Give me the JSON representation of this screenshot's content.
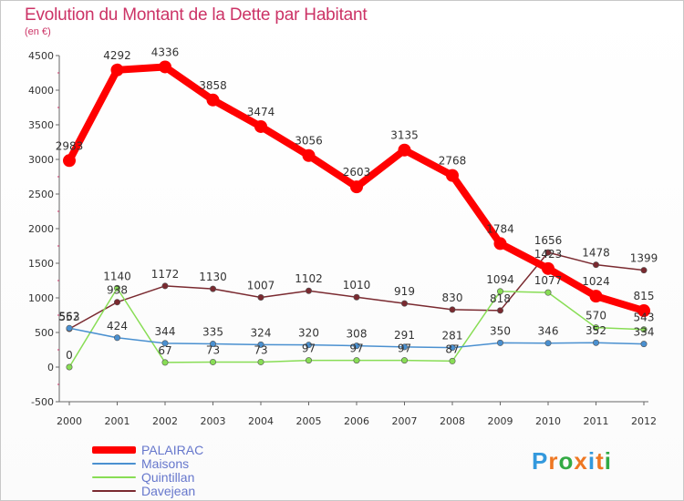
{
  "chart_data": {
    "type": "line",
    "title": "Evolution du Montant de la Dette par Habitant",
    "subtitle": "(en €)",
    "categories": [
      "2000",
      "2001",
      "2002",
      "2003",
      "2004",
      "2005",
      "2006",
      "2007",
      "2008",
      "2009",
      "2010",
      "2011",
      "2012"
    ],
    "ylim": [
      -500,
      4500
    ],
    "yticks": [
      "4500",
      "4000",
      "3500",
      "3000",
      "2500",
      "2000",
      "1500",
      "1000",
      "500",
      "0",
      "-500"
    ],
    "grid": false,
    "legend_position": "bottom-left",
    "series": [
      {
        "name": "PALAIRAC",
        "color": "#ff0000",
        "values": [
          2983,
          4292,
          4336,
          3858,
          3474,
          3056,
          2603,
          3135,
          2768,
          1784,
          1423,
          1024,
          815
        ],
        "labels": [
          "2983",
          "4292",
          "4336",
          "3858",
          "3474",
          "3056",
          "2603",
          "3135",
          "2768",
          "1784",
          "1423",
          "1024",
          "815"
        ]
      },
      {
        "name": "Maisons",
        "color": "#4a90d0",
        "values": [
          562,
          424,
          344,
          335,
          324,
          320,
          308,
          291,
          281,
          350,
          346,
          352,
          334
        ],
        "labels": [
          "562",
          "424",
          "344",
          "335",
          "324",
          "320",
          "308",
          "291",
          "281",
          "350",
          "346",
          "352",
          "334"
        ]
      },
      {
        "name": "Quintillan",
        "color": "#88dd55",
        "values": [
          0,
          1140,
          67,
          73,
          73,
          97,
          97,
          97,
          87,
          1094,
          1077,
          570,
          543
        ],
        "labels": [
          "0",
          "1140",
          "67",
          "73",
          "73",
          "97",
          "97",
          "97",
          "87",
          "1094",
          "1077",
          "570",
          "543"
        ]
      },
      {
        "name": "Davejean",
        "color": "#7a2a30",
        "values": [
          553,
          938,
          1172,
          1130,
          1007,
          1102,
          1010,
          919,
          830,
          818,
          1656,
          1478,
          1399
        ],
        "labels": [
          "553",
          "938",
          "1172",
          "1130",
          "1007",
          "1102",
          "1010",
          "919",
          "830",
          "818",
          "1656",
          "1478",
          "1399"
        ]
      }
    ]
  },
  "logo": {
    "text": "Proxiti",
    "letters": [
      "P",
      "r",
      "o",
      "x",
      "i",
      "t",
      "i"
    ]
  }
}
